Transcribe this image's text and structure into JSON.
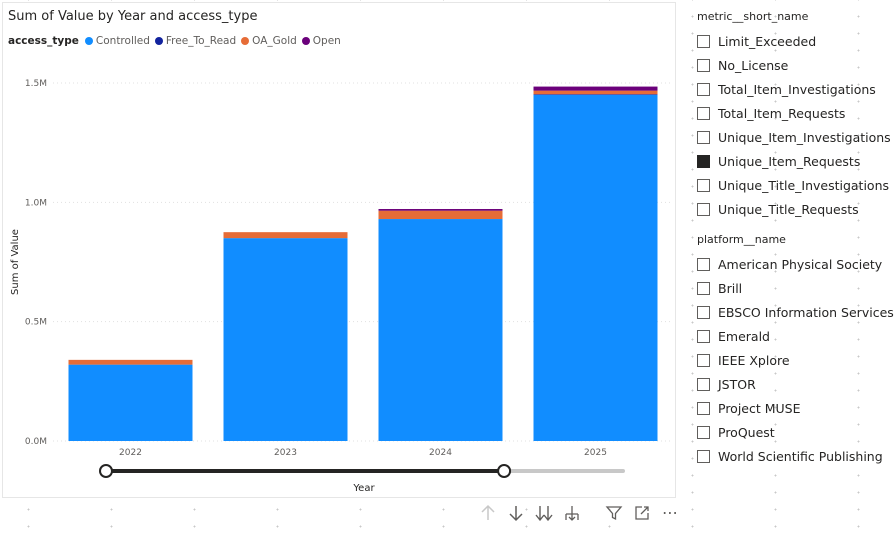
{
  "chart": {
    "title": "Sum of Value by Year and access_type",
    "legend_title": "access_type",
    "slider_label": "Year"
  },
  "chart_data": {
    "type": "bar",
    "stacked": true,
    "title": "Sum of Value by Year and access_type",
    "xlabel": "Year",
    "ylabel": "Sum of Value",
    "categories": [
      "2022",
      "2023",
      "2024",
      "2025"
    ],
    "ylim": [
      0,
      1500000
    ],
    "yticks": [
      0,
      500000,
      1000000,
      1500000
    ],
    "ytick_labels": [
      "0.0M",
      "0.5M",
      "1.0M",
      "1.5M"
    ],
    "grid": true,
    "legend_position": "top-left",
    "series": [
      {
        "name": "Controlled",
        "color": "#118DFF",
        "values": [
          320000,
          850000,
          930000,
          1450000
        ]
      },
      {
        "name": "Free_To_Read",
        "color": "#12239E",
        "values": [
          0,
          0,
          0,
          3000
        ]
      },
      {
        "name": "OA_Gold",
        "color": "#E66C37",
        "values": [
          20000,
          25000,
          35000,
          15000
        ]
      },
      {
        "name": "Open",
        "color": "#6B007B",
        "values": [
          0,
          0,
          7000,
          17000
        ]
      }
    ]
  },
  "year_slider": {
    "start_value": "2022",
    "end_value": "2025",
    "start_fraction": 0.0,
    "end_fraction": 0.77
  },
  "toolbar": {
    "icons": [
      "arrow-up-icon",
      "arrow-down-icon",
      "double-arrow-down-icon",
      "expand-hierarchy-icon",
      "filter-icon",
      "focus-mode-icon",
      "more-options-icon"
    ],
    "more_label": "⋯"
  },
  "metric_slicer": {
    "title": "metric__short_name",
    "items": [
      {
        "label": "Limit_Exceeded",
        "checked": false
      },
      {
        "label": "No_License",
        "checked": false
      },
      {
        "label": "Total_Item_Investigations",
        "checked": false
      },
      {
        "label": "Total_Item_Requests",
        "checked": false
      },
      {
        "label": "Unique_Item_Investigations",
        "checked": false
      },
      {
        "label": "Unique_Item_Requests",
        "checked": true
      },
      {
        "label": "Unique_Title_Investigations",
        "checked": false
      },
      {
        "label": "Unique_Title_Requests",
        "checked": false
      }
    ]
  },
  "platform_slicer": {
    "title": "platform__name",
    "items": [
      {
        "label": "American Physical Society",
        "checked": false
      },
      {
        "label": "Brill",
        "checked": false
      },
      {
        "label": "EBSCO Information Services",
        "checked": false
      },
      {
        "label": "Emerald",
        "checked": false
      },
      {
        "label": "IEEE Xplore",
        "checked": false
      },
      {
        "label": "JSTOR",
        "checked": false
      },
      {
        "label": "Project MUSE",
        "checked": false
      },
      {
        "label": "ProQuest",
        "checked": false
      },
      {
        "label": "World Scientific Publishing",
        "checked": false
      }
    ]
  },
  "colors": {
    "slicer_checked": "#252423",
    "slider_track": "#252423",
    "slider_rest": "#c8c8c8"
  }
}
